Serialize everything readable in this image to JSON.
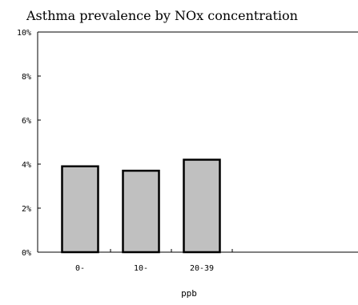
{
  "chart_data": {
    "type": "bar",
    "title": "Asthma prevalence by NOx concentration",
    "categories": [
      "0-",
      "10-",
      "20-39",
      ""
    ],
    "values": [
      3.9,
      3.7,
      4.2,
      null
    ],
    "xlabel": "ppb",
    "ylabel": "",
    "ylim": [
      0,
      10
    ],
    "yticks": [
      0,
      2,
      4,
      6,
      8,
      10
    ],
    "ytick_labels": [
      "0%",
      "2%",
      "4%",
      "6%",
      "8%",
      "10%"
    ],
    "grid": false,
    "legend": "none",
    "colors": {
      "bar_fill": "#c0c0c0",
      "bar_stroke": "#000000",
      "axis": "#000000"
    }
  }
}
